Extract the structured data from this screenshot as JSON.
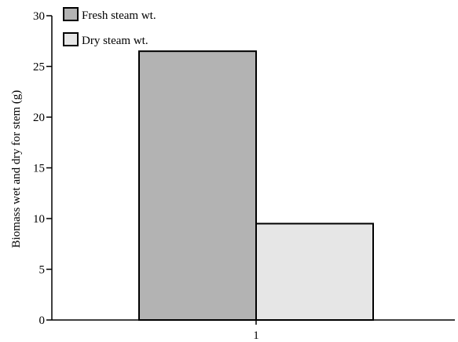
{
  "chart_data": {
    "type": "bar",
    "categories": [
      "1"
    ],
    "series": [
      {
        "name": "Fresh steam wt.",
        "values": [
          26.5
        ],
        "color": "#b3b3b3"
      },
      {
        "name": "Dry steam wt.",
        "values": [
          9.5
        ],
        "color": "#e6e6e6"
      }
    ],
    "ylabel": "Biomass wet and dry for stem (g)",
    "xlabel": "",
    "title": "",
    "ylim": [
      0,
      30
    ],
    "yticks": [
      0,
      5,
      10,
      15,
      20,
      25,
      30
    ],
    "grid": false,
    "legend_position": "top-left"
  }
}
